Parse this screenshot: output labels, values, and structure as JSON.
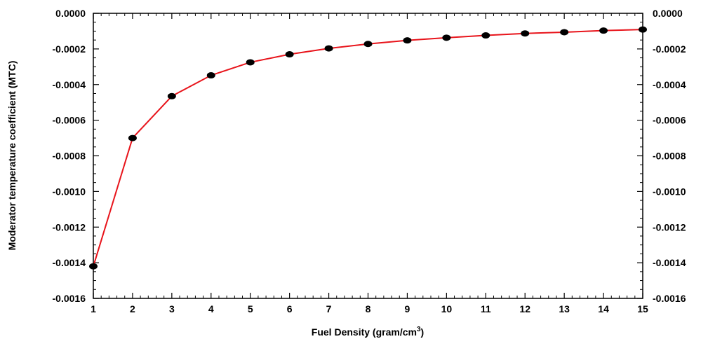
{
  "chart_data": {
    "type": "line",
    "title": "",
    "xlabel": "Fuel Density (gram/cm",
    "xlabel_superscript": "3",
    "xlabel_suffix": ")",
    "ylabel": "Moderator temperature coefficient (MTC)",
    "xlim": [
      1,
      15
    ],
    "ylim": [
      -0.0016,
      0.0
    ],
    "grid": false,
    "x_ticks": [
      "1",
      "2",
      "3",
      "4",
      "5",
      "6",
      "7",
      "8",
      "9",
      "10",
      "11",
      "12",
      "13",
      "14",
      "15"
    ],
    "y_ticks": [
      "0.0000",
      "-0.0002",
      "-0.0004",
      "-0.0006",
      "-0.0008",
      "-0.0010",
      "-0.0012",
      "-0.0014",
      "-0.0016"
    ],
    "series": [
      {
        "color": "#e8141b",
        "marker_color": "#000000",
        "x": [
          1,
          2,
          3,
          4,
          5,
          6,
          7,
          8,
          9,
          10,
          11,
          12,
          13,
          14,
          15
        ],
        "y": [
          -0.00142,
          -0.0007,
          -0.000465,
          -0.000348,
          -0.000275,
          -0.00023,
          -0.000197,
          -0.000172,
          -0.000152,
          -0.000137,
          -0.000124,
          -0.000113,
          -0.000106,
          -9.7e-05,
          -9.1e-05
        ]
      }
    ]
  }
}
